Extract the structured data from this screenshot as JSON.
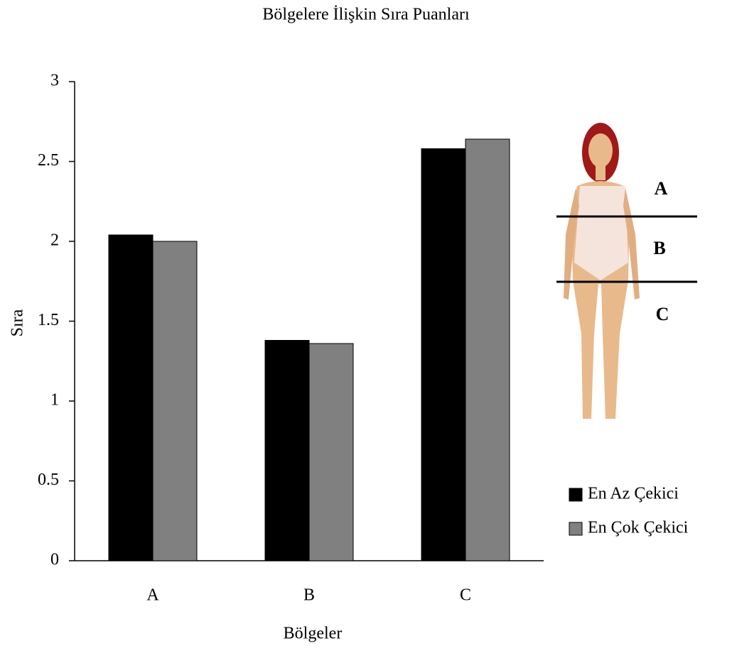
{
  "chart_data": {
    "type": "bar",
    "title": "Bölgelere İlişkin Sıra Puanları",
    "x_label": "Bölgeler",
    "y_label": "Sıra",
    "categories": [
      "A",
      "B",
      "C"
    ],
    "series": [
      {
        "name": "En Az Çekici",
        "color": "#000000",
        "values": [
          2.04,
          1.38,
          2.58
        ]
      },
      {
        "name": "En Çok Çekici",
        "color": "#808080",
        "values": [
          2.0,
          1.36,
          2.64
        ]
      }
    ],
    "ylim": [
      0,
      3
    ],
    "yticks": [
      0,
      0.5,
      1,
      1.5,
      2,
      2.5,
      3
    ],
    "annotations": [
      "A",
      "B",
      "C"
    ]
  }
}
